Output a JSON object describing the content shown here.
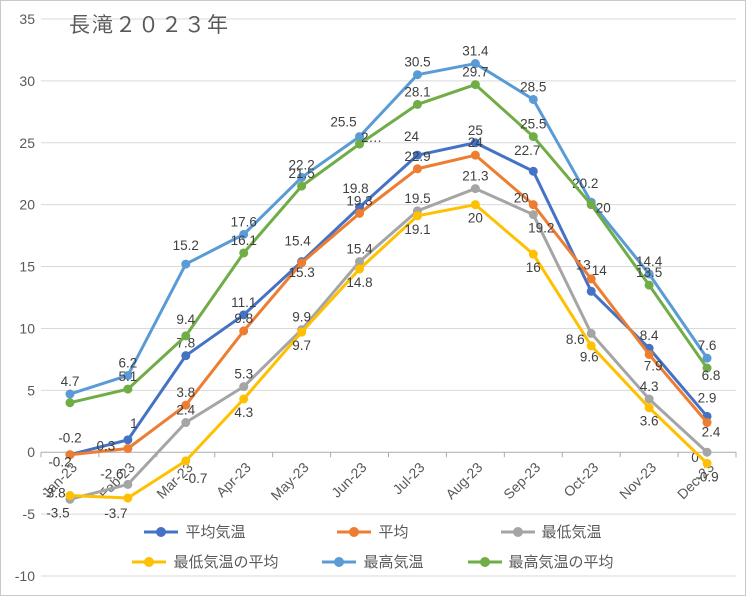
{
  "title": "長滝２０２３年",
  "chart_data": {
    "type": "line",
    "title": "長滝２０２３年",
    "categories": [
      "Jan-23",
      "Feb-23",
      "Mar-23",
      "Apr-23",
      "May-23",
      "Jun-23",
      "Jul-23",
      "Aug-23",
      "Sep-23",
      "Oct-23",
      "Nov-23",
      "Dec-23"
    ],
    "ylim": [
      -10,
      35
    ],
    "ytick_step": 5,
    "grid": true,
    "legend_position": "bottom",
    "colors": {
      "grid": "#D9D9D9",
      "axis": "#ABABAB",
      "axis_text": "#595959",
      "data_label_text": "#404040"
    },
    "series": [
      {
        "key": "mean-temp",
        "name": "平均気温",
        "color": "#4472C4",
        "values": [
          -0.2,
          1,
          7.8,
          11.1,
          15.4,
          19.8,
          24,
          25,
          22.7,
          13,
          8.4,
          2.9
        ],
        "labels": [
          "-0.2",
          "1",
          "7.8",
          "11.1",
          "15.4",
          "19.8",
          "24",
          "25",
          "22.7",
          "13",
          "8.4",
          "2.9"
        ]
      },
      {
        "key": "mean",
        "name": "平均",
        "color": "#ED7D31",
        "values": [
          -0.2,
          0.3,
          3.8,
          9.8,
          15.3,
          19.3,
          22.9,
          24,
          20,
          14,
          7.9,
          2.4
        ],
        "labels": [
          "-0.2",
          "0.3",
          "3.8",
          "9.8",
          "15.3",
          "19.3",
          "22.9",
          "24",
          "20",
          "14",
          "7.9",
          "2.4"
        ]
      },
      {
        "key": "min-temp",
        "name": "最低気温",
        "color": "#A5A5A5",
        "values": [
          -3.8,
          -2.6,
          2.4,
          5.3,
          9.9,
          15.4,
          19.5,
          21.3,
          19.2,
          9.6,
          4.3,
          0
        ],
        "labels": [
          "-3.8",
          "-2.6",
          "2.4",
          "5.3",
          "9.9",
          "15.4",
          "19.5",
          "21.3",
          "19.2",
          "9.6",
          "4.3",
          "0"
        ]
      },
      {
        "key": "min-temp-mean",
        "name": "最低気温の平均",
        "color": "#FFC000",
        "label_side": "below",
        "values": [
          -3.5,
          -3.7,
          -0.7,
          4.3,
          9.7,
          14.8,
          19.1,
          20,
          16,
          8.6,
          3.6,
          -0.9
        ],
        "labels": [
          "-3.5",
          "-3.7",
          "-0.7",
          "4.3",
          "9.7",
          "14.8",
          "19.1",
          "20",
          "16",
          "8.6",
          "3.6",
          "-0.9"
        ]
      },
      {
        "key": "max-temp",
        "name": "最高気温",
        "color": "#5B9BD5",
        "values": [
          4.7,
          6.2,
          15.2,
          17.6,
          22.2,
          25.5,
          30.5,
          31.4,
          28.5,
          20.2,
          14.4,
          7.6
        ],
        "labels": [
          "4.7",
          "6.2",
          "15.2",
          "17.6",
          "22.2",
          "25.5",
          "30.5",
          "31.4",
          "28.5",
          "20.2",
          "14.4",
          "7.6"
        ]
      },
      {
        "key": "max-temp-mean",
        "name": "最高気温の平均",
        "color": "#70AD47",
        "values": [
          4,
          5.1,
          9.4,
          16.1,
          21.5,
          24.9,
          28.1,
          29.7,
          25.5,
          20,
          13.5,
          6.8
        ],
        "labels": [
          "",
          "5.1",
          "9.4",
          "16.1",
          "21.5",
          "2…",
          "28.1",
          "29.7",
          "25.5",
          "20",
          "13.5",
          "6.8"
        ]
      }
    ]
  }
}
